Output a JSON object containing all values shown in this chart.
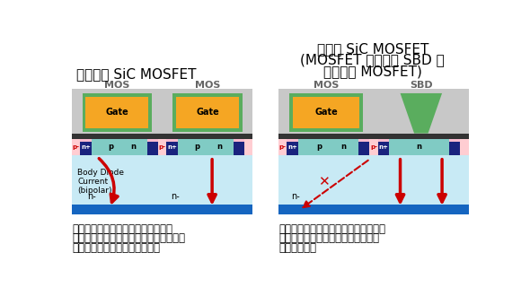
{
  "title_left": "一般的な SiC MOSFET",
  "title_right_line1": "東芝の SiC MOSFET",
  "title_right_line2": "(MOSFET チップに SBD を",
  "title_right_line3": "内蔵した MOSFET)",
  "caption_left_line1": "逆導通動作時にボディーダイオード",
  "caption_left_line2": "がバイポーラー通電することによって、",
  "caption_left_line3": "オン抵抗が増大していきます。",
  "caption_right_line1": "逆導通動作時にボディーダイオードが",
  "caption_right_line2": "動作しないため、オン抵抗の増大が",
  "caption_right_line3": "ありません。",
  "label_mos": "MOS",
  "label_sbd": "SBD",
  "label_gate": "Gate",
  "label_body_current": "Body Diode\nCurrent\n(bipolar)",
  "label_nminus": "n-",
  "label_nplus": "n+",
  "label_p": "p",
  "label_pminus": "p-",
  "label_n": "n",
  "color_bg": "#ffffff",
  "color_gate_green": "#5aad5e",
  "color_gate_orange": "#f5a623",
  "color_nplus_blue": "#1a237e",
  "color_n_teal": "#80cbc4",
  "color_p_pink": "#f8bbd0",
  "color_pminus_red": "#ffcdd2",
  "color_substrate_blue": "#1565c0",
  "color_body_light_blue": "#c8eaf5",
  "color_red_arrow": "#cc0000",
  "color_gray_bg": "#c8c8c8",
  "color_dark_strip": "#333333",
  "color_text_gray": "#666666"
}
